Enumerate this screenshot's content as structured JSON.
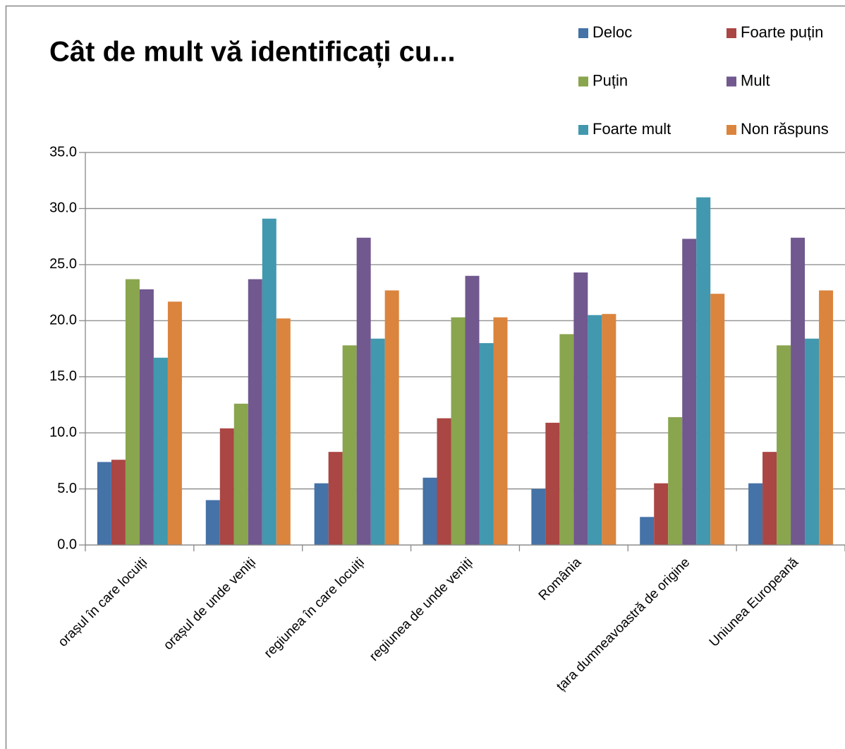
{
  "chart_data": {
    "type": "bar",
    "title": "Cât de mult vă identificați cu...",
    "categories": [
      "orașul în care locuiți",
      "orașul de unde veniți",
      "regiunea în care locuiți",
      "regiunea de unde veniți",
      "România",
      "țara dumneavoastră de origine",
      "Uniunea Europeană"
    ],
    "series": [
      {
        "name": "Deloc",
        "color": "#4572a7",
        "values": [
          7.4,
          4.0,
          5.5,
          6.0,
          5.0,
          2.5,
          5.5
        ]
      },
      {
        "name": "Foarte puțin",
        "color": "#aa4643",
        "values": [
          7.6,
          10.4,
          8.3,
          11.3,
          10.9,
          5.5,
          8.3
        ]
      },
      {
        "name": "Puțin",
        "color": "#89a54e",
        "values": [
          23.7,
          12.6,
          17.8,
          20.3,
          18.8,
          11.4,
          17.8
        ]
      },
      {
        "name": "Mult",
        "color": "#71588f",
        "values": [
          22.8,
          23.7,
          27.4,
          24.0,
          24.3,
          27.3,
          27.4
        ]
      },
      {
        "name": "Foarte mult",
        "color": "#4198af",
        "values": [
          16.7,
          29.1,
          18.4,
          18.0,
          20.5,
          31.0,
          18.4
        ]
      },
      {
        "name": "Non răspuns",
        "color": "#db843d",
        "values": [
          21.7,
          20.2,
          22.7,
          20.3,
          20.6,
          22.4,
          22.7
        ]
      }
    ],
    "ylim": [
      0,
      35
    ],
    "yticks": [
      {
        "value": 0,
        "label": "0.0"
      },
      {
        "value": 5,
        "label": "5.0"
      },
      {
        "value": 10,
        "label": "10.0"
      },
      {
        "value": 15,
        "label": "15.0"
      },
      {
        "value": 20,
        "label": "20.0"
      },
      {
        "value": 25,
        "label": "25.0"
      },
      {
        "value": 30,
        "label": "30.0"
      },
      {
        "value": 35,
        "label": "35.0"
      }
    ],
    "grid": true
  }
}
